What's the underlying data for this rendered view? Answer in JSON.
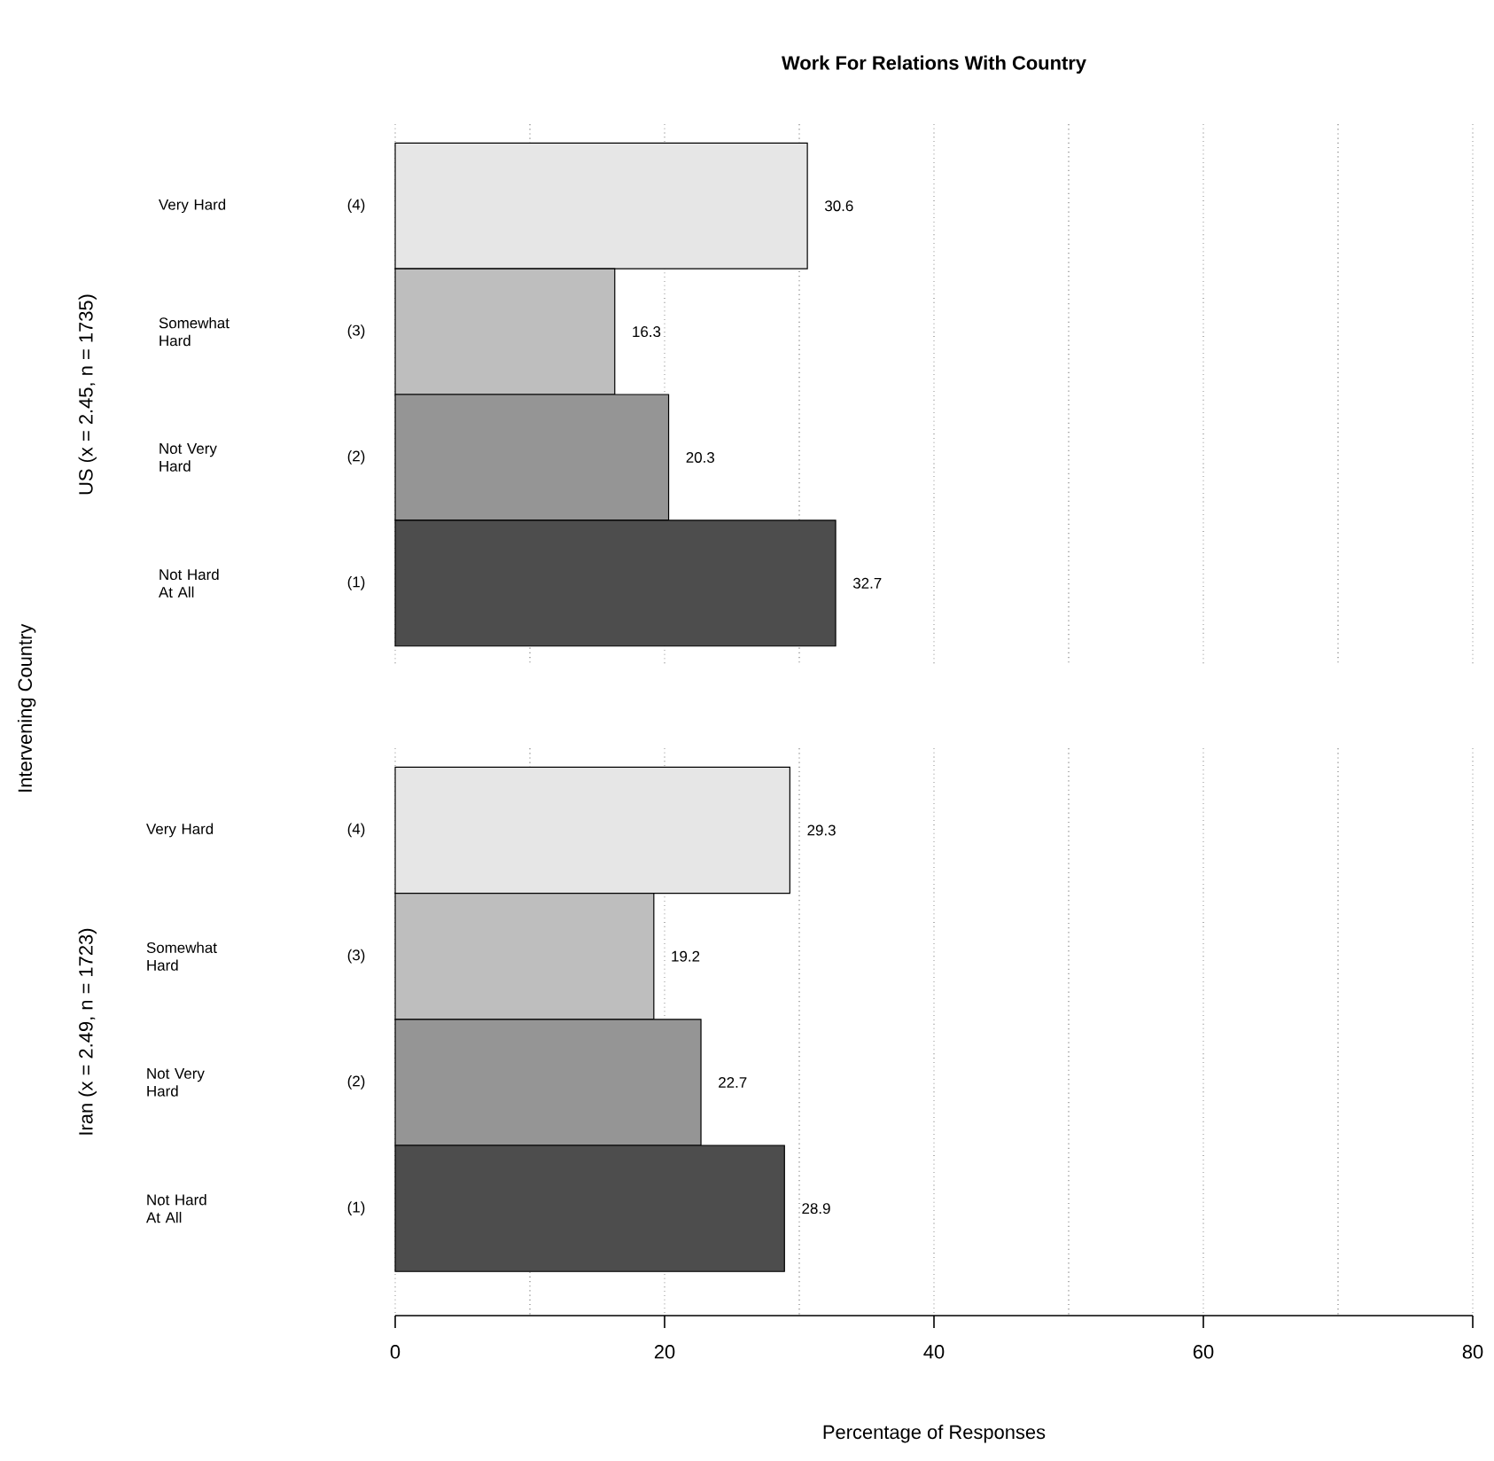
{
  "chart_data": [
    {
      "type": "bar",
      "orientation": "horizontal",
      "title": "Work For Relations With Country",
      "ylabel": "US (x = 2.45, n = 1735)",
      "categories": [
        "Very Hard",
        "Somewhat Hard",
        "Not Very Hard",
        "Not Hard At All"
      ],
      "values": [
        30.6,
        16.3,
        20.3,
        32.7
      ],
      "colors": [
        "#e6e6e6",
        "#bebebe",
        "#959595",
        "#4d4d4d"
      ],
      "annotations": [
        "(4)",
        "(3)",
        "(2)",
        "(1)"
      ],
      "data_labels": true,
      "xlim": [
        0,
        80
      ],
      "xticks": [
        0,
        20,
        40,
        60,
        80
      ],
      "grid": "x",
      "tick_labels": "y"
    },
    {
      "type": "bar",
      "orientation": "horizontal",
      "ylabel": "Iran (x = 2.49, n = 1723)",
      "xlabel": "Percentage of Responses",
      "categories": [
        "Very Hard",
        "Somewhat Hard",
        "Not Very Hard",
        "Not Hard At All"
      ],
      "values": [
        29.3,
        19.2,
        22.7,
        28.9
      ],
      "colors": [
        "#e6e6e6",
        "#bebebe",
        "#959595",
        "#4d4d4d"
      ],
      "annotations": [
        "(4)",
        "(3)",
        "(2)",
        "(1)",
        "Intervening Country"
      ],
      "data_labels": true,
      "xlim": [
        0,
        80
      ],
      "xticks": [
        0,
        20,
        40,
        60,
        80
      ],
      "grid": "x"
    }
  ]
}
